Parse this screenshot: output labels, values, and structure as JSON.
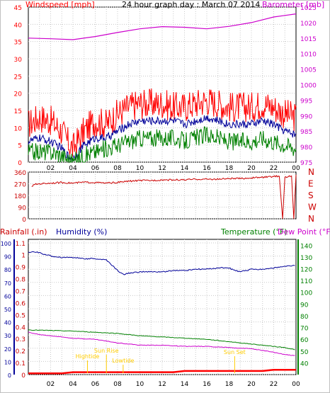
{
  "chart_data": [
    {
      "type": "line",
      "title": "24 hour graph day : March 07 2014",
      "left_axis_title": "Windspeed [mph]",
      "right_axis_title": "Barometer [mb]",
      "x_ticks": [
        "02",
        "04",
        "06",
        "08",
        "10",
        "12",
        "14",
        "16",
        "18",
        "20",
        "22",
        "00"
      ],
      "x_range": [
        0,
        24
      ],
      "y_left_range": [
        0,
        45
      ],
      "y_left_ticks": [
        "0",
        "5",
        "10",
        "15",
        "20",
        "25",
        "30",
        "35",
        "40",
        "45"
      ],
      "y_right_range": [
        975,
        1025
      ],
      "y_right_ticks": [
        "975",
        "980",
        "985",
        "990",
        "995",
        "1000",
        "1005",
        "1010",
        "1015",
        "1020",
        "1025"
      ],
      "grid": true,
      "colors": {
        "gust": "#ff0000",
        "average": "#000099",
        "minimum": "#008000",
        "barometer": "#cc00cc"
      },
      "series": [
        {
          "key": "gust",
          "x": [
            0,
            1,
            2,
            3,
            3.5,
            4,
            5,
            6,
            7,
            8,
            9,
            10,
            11,
            12,
            13,
            14,
            15,
            16,
            17,
            18,
            19,
            20,
            21,
            22,
            23,
            24
          ],
          "y": [
            11,
            13,
            12,
            9,
            6,
            4,
            9,
            12,
            11,
            14,
            16,
            17,
            17,
            17,
            16,
            16,
            17,
            18,
            17,
            16,
            16,
            16,
            17,
            16,
            14,
            13
          ]
        },
        {
          "key": "average",
          "x": [
            0,
            1,
            2,
            3,
            3.5,
            4,
            5,
            6,
            7,
            8,
            9,
            10,
            11,
            12,
            13,
            14,
            15,
            16,
            17,
            18,
            19,
            20,
            21,
            22,
            23,
            24
          ],
          "y": [
            6,
            7,
            6,
            4,
            2,
            1,
            5,
            7,
            7,
            9,
            11,
            12,
            12,
            12,
            12,
            11,
            12,
            13,
            12,
            11,
            11,
            11,
            12,
            11,
            9,
            8
          ]
        },
        {
          "key": "minimum",
          "x": [
            0,
            1,
            2,
            3,
            3.5,
            4,
            5,
            6,
            7,
            8,
            9,
            10,
            11,
            12,
            13,
            14,
            15,
            16,
            17,
            18,
            19,
            20,
            21,
            22,
            23,
            24
          ],
          "y": [
            3,
            3,
            3,
            2,
            1,
            0,
            2,
            3,
            4,
            5,
            6,
            7,
            7,
            7,
            7,
            6,
            7,
            8,
            7,
            6,
            6,
            6,
            7,
            6,
            5,
            4
          ]
        },
        {
          "key": "barometer",
          "axis": "right",
          "x": [
            0,
            2,
            4,
            6,
            8,
            10,
            12,
            14,
            16,
            18,
            20,
            22,
            23,
            24
          ],
          "y": [
            1015,
            1014.8,
            1014.5,
            1015.5,
            1016.8,
            1018,
            1018.7,
            1018.5,
            1018,
            1018.8,
            1020,
            1021.8,
            1022.3,
            1022.8
          ]
        }
      ]
    },
    {
      "type": "line",
      "y_left_range": [
        0,
        360
      ],
      "y_left_ticks": [
        "0",
        "90",
        "180",
        "270",
        "360"
      ],
      "y_right_labels": [
        "N",
        "W",
        "S",
        "E",
        "N"
      ],
      "x_range": [
        0,
        24
      ],
      "grid": true,
      "colors": {
        "direction": "#cc0000"
      },
      "series": [
        {
          "key": "direction",
          "x": [
            0.3,
            0.6,
            1,
            2,
            3,
            4,
            5,
            6,
            7,
            8,
            9,
            10,
            11,
            12,
            13,
            14,
            15,
            16,
            17,
            18,
            19,
            20,
            21,
            22,
            22.5,
            22.8,
            23,
            23.6,
            23.8,
            24
          ],
          "y": [
            250,
            265,
            270,
            275,
            280,
            275,
            282,
            280,
            275,
            280,
            290,
            295,
            295,
            300,
            300,
            300,
            305,
            305,
            305,
            310,
            310,
            315,
            320,
            325,
            330,
            0,
            320,
            330,
            0,
            340
          ]
        }
      ]
    },
    {
      "type": "line",
      "left_axis_titles": [
        "Rainfall (.in)",
        "Humidity (%)"
      ],
      "right_axis_titles": [
        "Temperature (°F)",
        "Dew Point (°F)"
      ],
      "x_ticks": [
        "02",
        "04",
        "06",
        "08",
        "10",
        "12",
        "14",
        "16",
        "18",
        "20",
        "22",
        "00"
      ],
      "x_range": [
        0,
        24
      ],
      "y_rain_range": [
        0,
        1.0
      ],
      "y_rain_ticks": [
        "0",
        "0.1",
        "0.2",
        "0.3",
        "0.4",
        "0.5",
        "0.6",
        "0.7",
        "0.8",
        "0.9",
        "1",
        "1.1"
      ],
      "y_hum_range": [
        0,
        100
      ],
      "y_hum_ticks": [
        "0",
        "10",
        "20",
        "30",
        "40",
        "50",
        "60",
        "70",
        "80",
        "90",
        "100"
      ],
      "y_temp_range": [
        30,
        145
      ],
      "y_temp_ticks": [
        "40",
        "50",
        "60",
        "70",
        "80",
        "90",
        "100",
        "110",
        "120",
        "130",
        "140"
      ],
      "grid": true,
      "colors": {
        "rain": "#ff0000",
        "humidity": "#000099",
        "temperature": "#008000",
        "dewpoint": "#cc00cc",
        "annotation": "#ffcc00"
      },
      "annotations": [
        {
          "text": "Sun Rise",
          "x": 7.0
        },
        {
          "text": "Hightide",
          "x": 5.3
        },
        {
          "text": "Lowtide",
          "x": 8.5
        },
        {
          "text": "Sun Set",
          "x": 18.5
        }
      ],
      "series": [
        {
          "key": "humidity",
          "axis": "humidity",
          "x": [
            0,
            0.8,
            1.2,
            2,
            3,
            4,
            5,
            6,
            7,
            7.5,
            8,
            8.5,
            9,
            10,
            11,
            12,
            13,
            14,
            15,
            16,
            17,
            18,
            18.5,
            19,
            20,
            21,
            22,
            23,
            24
          ],
          "y": [
            93,
            93,
            92,
            90,
            89,
            89,
            88,
            88,
            87,
            83,
            79,
            76,
            77,
            78,
            78,
            78,
            79,
            79,
            80,
            80,
            81,
            81,
            79,
            78,
            80,
            80,
            81,
            82,
            83
          ]
        },
        {
          "key": "temperature",
          "axis": "temperature",
          "x": [
            0,
            2,
            4,
            6,
            8,
            10,
            12,
            14,
            16,
            18,
            20,
            22,
            23,
            24
          ],
          "y": [
            68,
            67.5,
            67,
            66,
            65,
            63,
            62,
            61,
            60,
            58,
            56,
            54,
            53,
            51
          ]
        },
        {
          "key": "dewpoint",
          "axis": "temperature",
          "x": [
            0,
            1,
            2,
            4,
            6,
            8,
            10,
            12,
            14,
            16,
            18,
            20,
            22,
            23,
            24
          ],
          "y": [
            66,
            64,
            63,
            61,
            60,
            57,
            55,
            55,
            54,
            54,
            53,
            52,
            49,
            47,
            46
          ]
        },
        {
          "key": "rain",
          "axis": "rain",
          "x": [
            0,
            1,
            2,
            3,
            4,
            5,
            6,
            7,
            8,
            9,
            10,
            11,
            12,
            13,
            14,
            15,
            16,
            17,
            18,
            19,
            20,
            21,
            22,
            23,
            24
          ],
          "y": [
            0.01,
            0.01,
            0.01,
            0.01,
            0.02,
            0.02,
            0.02,
            0.02,
            0.02,
            0.02,
            0.02,
            0.02,
            0.02,
            0.02,
            0.03,
            0.03,
            0.03,
            0.03,
            0.03,
            0.03,
            0.03,
            0.03,
            0.04,
            0.04,
            0.04
          ]
        }
      ]
    }
  ]
}
